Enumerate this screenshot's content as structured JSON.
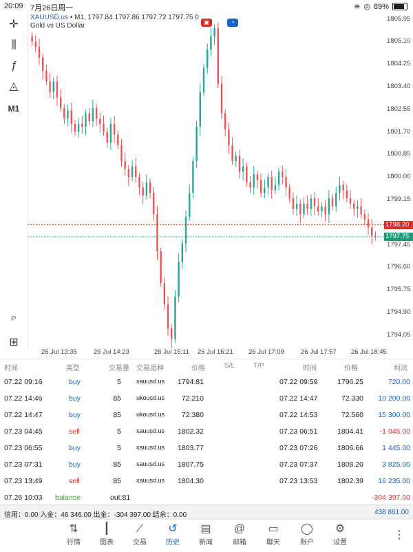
{
  "status": {
    "time": "20:09",
    "date": "7月26日周一",
    "battery": "89%"
  },
  "chart": {
    "symbol": "XAUUSD.us",
    "header_rest": "• M1, 1797.84 1797.86 1797.72 1797.75 0",
    "subtitle": "Gold vs US Dollar",
    "timeframe": "M1",
    "price_labels": [
      "1805.95",
      "1805.10",
      "1804.25",
      "1803.40",
      "1802.55",
      "1801.70",
      "1800.85",
      "1800.00",
      "1799.15",
      "1797.45",
      "1796.60",
      "1795.75",
      "1794.90",
      "1794.05"
    ],
    "tag_red": "1798.20",
    "tag_green": "1797.75",
    "time_labels": [
      "26 Jul 13:35",
      "26 Jul 14:23",
      "26 Jul 15:11",
      "26 Jul 16:21",
      "26 Jul 17:09",
      "26 Jul 17:57",
      "26 Jul 18:45"
    ],
    "colors": {
      "bull": "#26a69a",
      "bear": "#ef5350",
      "red_line": "#d9302c",
      "green_line": "#1a9a7a"
    },
    "series_close": [
      1805.1,
      1804.9,
      1804.5,
      1804.0,
      1803.6,
      1803.2,
      1803.6,
      1803.0,
      1802.6,
      1802.2,
      1802.5,
      1802.0,
      1801.7,
      1802.0,
      1801.9,
      1802.4,
      1802.1,
      1802.6,
      1802.2,
      1802.0,
      1801.7,
      1801.3,
      1802.0,
      1801.6,
      1801.2,
      1800.6,
      1800.3,
      1800.0,
      1800.4,
      1800.0,
      1799.6,
      1799.3,
      1799.8,
      1799.4,
      1798.6,
      1797.2,
      1796.0,
      1795.2,
      1794.3,
      1793.9,
      1795.5,
      1796.8,
      1797.5,
      1798.5,
      1799.4,
      1800.6,
      1801.9,
      1803.2,
      1804.1,
      1804.8,
      1805.3,
      1805.6,
      1803.5,
      1802.4,
      1801.8,
      1801.2,
      1800.6,
      1800.8,
      1800.2,
      1800.4,
      1799.8,
      1799.6,
      1800.1,
      1799.9,
      1799.4,
      1799.6,
      1800.0,
      1799.5,
      1799.7,
      1800.2,
      1800.0,
      1799.6,
      1799.2,
      1798.8,
      1799.0,
      1798.6,
      1799.0,
      1798.8,
      1799.2,
      1798.9,
      1798.7,
      1798.9,
      1798.6,
      1799.2,
      1798.9,
      1799.4,
      1799.7,
      1799.5,
      1799.2,
      1799.0,
      1798.8,
      1798.9,
      1798.6,
      1798.4,
      1798.1,
      1797.8,
      1797.75
    ]
  },
  "table": {
    "headers": {
      "time": "时间",
      "type": "类型",
      "volume": "交易量",
      "symbol": "交易品种",
      "price": "价格",
      "sl": "S/L",
      "tp": "T/P",
      "time2": "时间",
      "price2": "价格",
      "profit": "利润"
    },
    "rows": [
      {
        "time": "07.22 09:16",
        "type": "buy",
        "volume": "5",
        "symbol": "xauusd.us",
        "price": "1794.81",
        "time2": "07.22 09:59",
        "price2": "1796.25",
        "profit": "720.00"
      },
      {
        "time": "07.22 14:46",
        "type": "buy",
        "volume": "85",
        "symbol": "ukousd.us",
        "price": "72.210",
        "time2": "07.22 14:47",
        "price2": "72.330",
        "profit": "10 200.00"
      },
      {
        "time": "07.22 14:47",
        "type": "buy",
        "volume": "85",
        "symbol": "ukousd.us",
        "price": "72.380",
        "time2": "07.22 14:53",
        "price2": "72.560",
        "profit": "15 300.00"
      },
      {
        "time": "07.23 04:45",
        "type": "sell",
        "volume": "5",
        "symbol": "xauusd.us",
        "price": "1802.32",
        "time2": "07.23 06:51",
        "price2": "1804.41",
        "profit": "-1 045.00"
      },
      {
        "time": "07.23 06:55",
        "type": "buy",
        "volume": "5",
        "symbol": "xauusd.us",
        "price": "1803.77",
        "time2": "07.23 07:26",
        "price2": "1806.66",
        "profit": "1 445.00"
      },
      {
        "time": "07.23 07:31",
        "type": "buy",
        "volume": "85",
        "symbol": "xauusd.us",
        "price": "1807.75",
        "time2": "07.23 07:37",
        "price2": "1808.20",
        "profit": "3 825.00"
      },
      {
        "time": "07.23 13:49",
        "type": "sell",
        "volume": "85",
        "symbol": "xauusd.us",
        "price": "1804.30",
        "time2": "07.23 13:53",
        "price2": "1802.39",
        "profit": "16 235.00"
      }
    ],
    "balance_row": {
      "time": "07.26 10:03",
      "type": "balance",
      "out": "out:81",
      "profit": "-304 397.00"
    }
  },
  "summary": {
    "text": "信用：0.00 入金：46 346.00 出金：-304 397.00 结余：0.00",
    "total": "438 861.00"
  },
  "nav": [
    {
      "label": "行情",
      "icon": "⇅",
      "name": "quotes"
    },
    {
      "label": "图表",
      "icon": "┃",
      "name": "chart"
    },
    {
      "label": "交易",
      "icon": "⟋",
      "name": "trade"
    },
    {
      "label": "历史",
      "icon": "↺",
      "name": "history",
      "active": true
    },
    {
      "label": "新闻",
      "icon": "▤",
      "name": "news"
    },
    {
      "label": "邮箱",
      "icon": "@",
      "name": "mail"
    },
    {
      "label": "聊天",
      "icon": "▭",
      "name": "chat"
    },
    {
      "label": "账户",
      "icon": "◯",
      "name": "account"
    },
    {
      "label": "设置",
      "icon": "⚙",
      "name": "settings"
    }
  ]
}
